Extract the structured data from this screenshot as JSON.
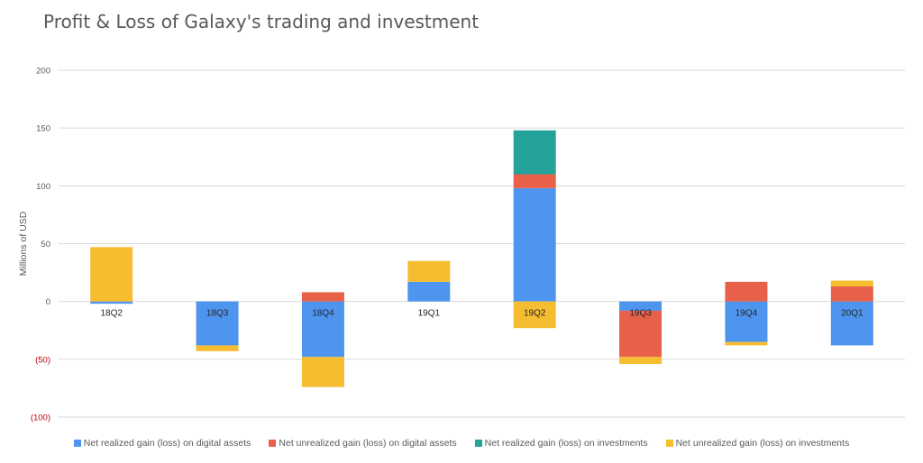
{
  "chart_data": {
    "type": "bar",
    "stacked": true,
    "title": "Profit & Loss of Galaxy's trading and investment",
    "ylabel": "Millions of USD",
    "ylim": [
      -100,
      200
    ],
    "yticks": [
      {
        "value": 200,
        "label": "200"
      },
      {
        "value": 150,
        "label": "150"
      },
      {
        "value": 100,
        "label": "100"
      },
      {
        "value": 50,
        "label": "50"
      },
      {
        "value": 0,
        "label": "0"
      },
      {
        "value": -50,
        "label": "(50)"
      },
      {
        "value": -100,
        "label": "(100)"
      }
    ],
    "grid": true,
    "legend_position": "bottom",
    "categories": [
      "18Q2",
      "18Q3",
      "18Q4",
      "19Q1",
      "19Q2",
      "19Q3",
      "19Q4",
      "20Q1"
    ],
    "series": [
      {
        "name": "Net realized gain (loss) on digital assets",
        "color": "#4e95f0",
        "values": [
          -2,
          -38,
          -48,
          17,
          98,
          -8,
          -35,
          -38
        ]
      },
      {
        "name": "Net unrealized gain (loss) on digital assets",
        "color": "#e8604a",
        "values": [
          0,
          0,
          8,
          0,
          12,
          -40,
          17,
          13
        ]
      },
      {
        "name": "Net realized gain (loss) on investments",
        "color": "#25a29a",
        "values": [
          0,
          0,
          0,
          0,
          38,
          0,
          0,
          0
        ]
      },
      {
        "name": "Net unrealized gain (loss) on investments",
        "color": "#f7bd30",
        "values": [
          47,
          -5,
          -26,
          18,
          -23,
          -6,
          -3,
          5
        ]
      }
    ],
    "negative_tick_color": "#c00000",
    "axis_text_color": "#595959",
    "grid_color": "#d9d9d9"
  }
}
